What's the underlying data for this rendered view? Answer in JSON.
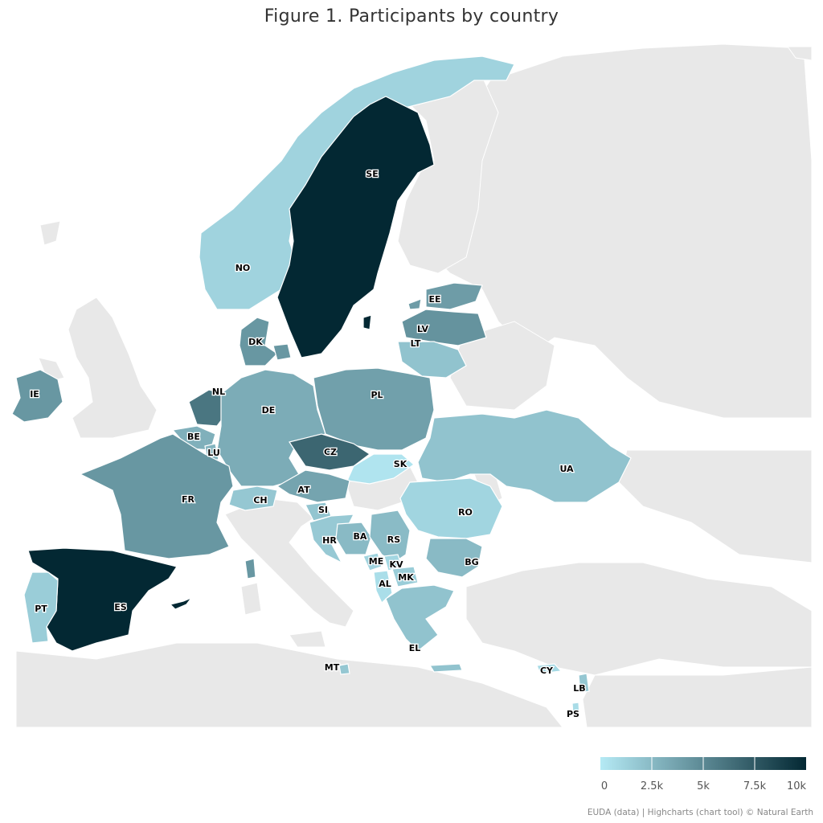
{
  "title": "Figure 1. Participants by country",
  "credits": "EUDA (data) | Highcharts (chart tool) © Natural Earth",
  "colors": {
    "scale_min": "#b5eaf5",
    "scale_max": "#032833",
    "background_land": "#e8e8e8",
    "sea": "#ffffff"
  },
  "chart_data": {
    "type": "choropleth",
    "title": "Figure 1. Participants by country",
    "value_range": [
      0,
      10000
    ],
    "legend": {
      "position": "bottom-right",
      "ticks": [
        "0",
        "2.5k",
        "5k",
        "7.5k",
        "10k"
      ],
      "tick_values": [
        0,
        2500,
        5000,
        7500,
        10000
      ]
    },
    "countries": [
      {
        "code": "SE",
        "value": 10000
      },
      {
        "code": "NO",
        "value": 1200
      },
      {
        "code": "ES",
        "value": 10000
      },
      {
        "code": "PT",
        "value": 1500
      },
      {
        "code": "FR",
        "value": 4300
      },
      {
        "code": "BE",
        "value": 3000
      },
      {
        "code": "LU",
        "value": 2800
      },
      {
        "code": "NL",
        "value": 6000
      },
      {
        "code": "DE",
        "value": 3200
      },
      {
        "code": "DK",
        "value": 4300
      },
      {
        "code": "IE",
        "value": 4300
      },
      {
        "code": "PL",
        "value": 3800
      },
      {
        "code": "CZ",
        "value": 6800
      },
      {
        "code": "SK",
        "value": 300
      },
      {
        "code": "AT",
        "value": 3600
      },
      {
        "code": "CH",
        "value": 1800
      },
      {
        "code": "SI",
        "value": 1900
      },
      {
        "code": "HR",
        "value": 1700
      },
      {
        "code": "BA",
        "value": 2500
      },
      {
        "code": "RS",
        "value": 2400
      },
      {
        "code": "ME",
        "value": 1200
      },
      {
        "code": "KV",
        "value": 1000
      },
      {
        "code": "AL",
        "value": 600
      },
      {
        "code": "MK",
        "value": 1500
      },
      {
        "code": "BG",
        "value": 2500
      },
      {
        "code": "RO",
        "value": 1100
      },
      {
        "code": "UA",
        "value": 2000
      },
      {
        "code": "EL",
        "value": 2000
      },
      {
        "code": "EE",
        "value": 4000
      },
      {
        "code": "LV",
        "value": 4500
      },
      {
        "code": "LT",
        "value": 2000
      },
      {
        "code": "MT",
        "value": 1800
      },
      {
        "code": "CY",
        "value": 900
      },
      {
        "code": "LB",
        "value": 1800
      },
      {
        "code": "PS",
        "value": 700
      }
    ]
  }
}
